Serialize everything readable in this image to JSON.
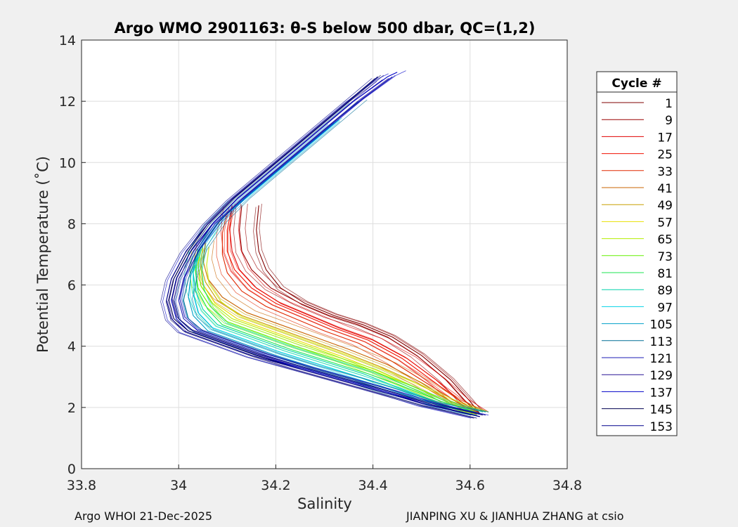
{
  "chart_data": {
    "type": "line",
    "title": "Argo WMO 2901163: θ-S below 500 dbar,  QC=(1,2)",
    "xlabel": "Salinity",
    "ylabel": "Potential Temperature (˚C)",
    "xlim": [
      33.8,
      34.8
    ],
    "ylim": [
      0,
      14
    ],
    "xticks": [
      "33.8",
      "34",
      "34.2",
      "34.4",
      "34.6",
      "34.8"
    ],
    "yticks": [
      "0",
      "2",
      "4",
      "6",
      "8",
      "10",
      "12",
      "14"
    ],
    "grid": true,
    "legend_title": "Cycle #",
    "legend_position": "right",
    "series": [
      {
        "name": "1",
        "color": "#800000",
        "x": [
          34.62,
          34.6,
          34.56,
          34.5,
          34.44,
          34.38,
          34.32,
          34.26,
          34.21,
          34.18,
          34.165,
          34.16,
          34.165
        ],
        "y": [
          1.8,
          2.2,
          2.9,
          3.7,
          4.3,
          4.7,
          5.0,
          5.4,
          5.9,
          6.5,
          7.1,
          7.8,
          8.6
        ]
      },
      {
        "name": "9",
        "color": "#9a0000",
        "x": [
          34.62,
          34.59,
          34.55,
          34.49,
          34.43,
          34.37,
          34.31,
          34.25,
          34.19,
          34.15,
          34.13,
          34.125,
          34.13
        ],
        "y": [
          1.8,
          2.2,
          2.9,
          3.7,
          4.3,
          4.7,
          5.0,
          5.4,
          5.9,
          6.5,
          7.1,
          7.8,
          8.6
        ]
      },
      {
        "name": "17",
        "color": "#e00000",
        "x": [
          34.62,
          34.58,
          34.53,
          34.47,
          34.4,
          34.33,
          34.27,
          34.21,
          34.16,
          34.125,
          34.11,
          34.105,
          34.11
        ],
        "y": [
          1.8,
          2.2,
          2.9,
          3.6,
          4.2,
          4.6,
          5.0,
          5.4,
          5.9,
          6.5,
          7.1,
          7.8,
          8.6
        ]
      },
      {
        "name": "25",
        "color": "#f01000",
        "x": [
          34.62,
          34.58,
          34.52,
          34.46,
          34.39,
          34.32,
          34.26,
          34.2,
          34.15,
          34.115,
          34.1,
          34.1,
          34.11
        ],
        "y": [
          1.8,
          2.2,
          2.9,
          3.6,
          4.2,
          4.6,
          5.0,
          5.4,
          5.9,
          6.5,
          7.1,
          7.8,
          8.6
        ]
      },
      {
        "name": "33",
        "color": "#e02800",
        "x": [
          34.62,
          34.57,
          34.51,
          34.44,
          34.37,
          34.3,
          34.24,
          34.18,
          34.13,
          34.1,
          34.09,
          34.09,
          34.1
        ],
        "y": [
          1.8,
          2.2,
          2.8,
          3.5,
          4.1,
          4.5,
          4.9,
          5.3,
          5.8,
          6.4,
          7.0,
          7.7,
          8.4
        ]
      },
      {
        "name": "41",
        "color": "#c86400",
        "x": [
          34.62,
          34.56,
          34.5,
          34.43,
          34.35,
          34.28,
          34.21,
          34.14,
          34.09,
          34.06,
          34.05,
          34.055
        ],
        "y": [
          1.8,
          2.2,
          2.8,
          3.4,
          3.9,
          4.3,
          4.7,
          5.1,
          5.6,
          6.2,
          6.8,
          7.4
        ]
      },
      {
        "name": "49",
        "color": "#c8a000",
        "x": [
          34.62,
          34.56,
          34.49,
          34.42,
          34.34,
          34.27,
          34.2,
          34.13,
          34.08,
          34.055,
          34.045,
          34.05
        ],
        "y": [
          1.8,
          2.2,
          2.8,
          3.3,
          3.8,
          4.2,
          4.6,
          5.0,
          5.5,
          6.1,
          6.7,
          7.3
        ]
      },
      {
        "name": "57",
        "color": "#e8e000",
        "x": [
          34.62,
          34.55,
          34.48,
          34.41,
          34.33,
          34.26,
          34.19,
          34.12,
          34.075,
          34.05,
          34.045,
          34.05
        ],
        "y": [
          1.8,
          2.2,
          2.7,
          3.2,
          3.7,
          4.1,
          4.5,
          4.9,
          5.4,
          6.0,
          6.6,
          7.2
        ]
      },
      {
        "name": "65",
        "color": "#b4ee00",
        "x": [
          34.62,
          34.55,
          34.48,
          34.4,
          34.32,
          34.25,
          34.18,
          34.11,
          34.07,
          34.045,
          34.04,
          34.045
        ],
        "y": [
          1.8,
          2.2,
          2.7,
          3.2,
          3.7,
          4.1,
          4.5,
          4.9,
          5.4,
          6.0,
          6.6,
          7.2
        ]
      },
      {
        "name": "73",
        "color": "#64f000",
        "x": [
          34.62,
          34.54,
          34.47,
          34.4,
          34.32,
          34.24,
          34.17,
          34.1,
          34.065,
          34.04,
          34.035,
          34.04
        ],
        "y": [
          1.8,
          2.2,
          2.7,
          3.2,
          3.6,
          4.0,
          4.4,
          4.8,
          5.3,
          5.9,
          6.5,
          7.1
        ]
      },
      {
        "name": "81",
        "color": "#1ee650",
        "x": [
          34.62,
          34.54,
          34.46,
          34.39,
          34.31,
          34.23,
          34.16,
          34.09,
          34.06,
          34.04,
          34.035,
          34.04
        ],
        "y": [
          1.8,
          2.2,
          2.7,
          3.1,
          3.5,
          3.9,
          4.3,
          4.7,
          5.2,
          5.8,
          6.4,
          7.0
        ]
      },
      {
        "name": "89",
        "color": "#00d2aa",
        "x": [
          34.62,
          34.54,
          34.46,
          34.38,
          34.3,
          34.22,
          34.15,
          34.08,
          34.05,
          34.035,
          34.03,
          34.04,
          34.07,
          34.12
        ],
        "y": [
          1.8,
          2.1,
          2.6,
          3.1,
          3.5,
          3.9,
          4.3,
          4.7,
          5.2,
          5.8,
          6.4,
          7.2,
          8.0,
          8.8
        ]
      },
      {
        "name": "97",
        "color": "#00d2e6",
        "x": [
          34.62,
          34.53,
          34.45,
          34.37,
          34.29,
          34.21,
          34.14,
          34.07,
          34.04,
          34.03,
          34.03,
          34.05,
          34.09,
          34.15,
          34.21,
          34.27,
          34.33
        ],
        "y": [
          1.8,
          2.1,
          2.6,
          3.0,
          3.4,
          3.8,
          4.2,
          4.6,
          5.1,
          5.7,
          6.4,
          7.3,
          8.2,
          9.0,
          9.8,
          10.6,
          11.4
        ]
      },
      {
        "name": "105",
        "color": "#00a0c8",
        "x": [
          34.62,
          34.53,
          34.45,
          34.37,
          34.28,
          34.2,
          34.13,
          34.06,
          34.03,
          34.02,
          34.025,
          34.045,
          34.085,
          34.14,
          34.2,
          34.26,
          34.32
        ],
        "y": [
          1.8,
          2.1,
          2.5,
          2.9,
          3.3,
          3.7,
          4.1,
          4.5,
          5.0,
          5.6,
          6.3,
          7.2,
          8.1,
          8.9,
          9.7,
          10.5,
          11.3
        ]
      },
      {
        "name": "113",
        "color": "#006e96",
        "x": [
          34.62,
          34.52,
          34.44,
          34.36,
          34.27,
          34.19,
          34.12,
          34.05,
          34.02,
          34.01,
          34.02,
          34.04,
          34.08,
          34.13,
          34.19,
          34.25,
          34.31,
          34.37
        ],
        "y": [
          1.8,
          2.1,
          2.5,
          2.9,
          3.3,
          3.7,
          4.1,
          4.5,
          4.9,
          5.5,
          6.2,
          7.1,
          8.0,
          8.8,
          9.6,
          10.4,
          11.2,
          12.0
        ]
      },
      {
        "name": "121",
        "color": "#1e1eb4",
        "x": [
          34.62,
          34.52,
          34.44,
          34.35,
          34.26,
          34.18,
          34.11,
          34.04,
          34.01,
          34.0,
          34.01,
          34.035,
          34.075,
          34.13,
          34.19,
          34.25,
          34.31,
          34.38,
          34.44
        ],
        "y": [
          1.7,
          2.1,
          2.5,
          2.9,
          3.3,
          3.7,
          4.1,
          4.5,
          4.9,
          5.5,
          6.2,
          7.1,
          8.0,
          8.8,
          9.6,
          10.4,
          11.2,
          12.1,
          12.8
        ]
      },
      {
        "name": "129",
        "color": "#281496",
        "x": [
          34.62,
          34.52,
          34.43,
          34.34,
          34.25,
          34.17,
          34.1,
          34.03,
          34.0,
          33.99,
          34.0,
          34.03,
          34.07,
          34.12,
          34.18,
          34.24,
          34.3,
          34.36,
          34.42
        ],
        "y": [
          1.7,
          2.1,
          2.5,
          2.9,
          3.3,
          3.7,
          4.1,
          4.5,
          4.9,
          5.5,
          6.2,
          7.1,
          8.0,
          8.8,
          9.6,
          10.4,
          11.2,
          12.0,
          12.7
        ]
      },
      {
        "name": "137",
        "color": "#0000c8",
        "x": [
          34.62,
          34.51,
          34.43,
          34.34,
          34.25,
          34.16,
          34.09,
          34.02,
          33.995,
          33.985,
          33.995,
          34.025,
          34.07,
          34.12,
          34.18,
          34.24,
          34.3,
          34.36,
          34.43,
          34.45
        ],
        "y": [
          1.7,
          2.1,
          2.5,
          2.9,
          3.3,
          3.7,
          4.1,
          4.5,
          4.9,
          5.5,
          6.2,
          7.1,
          8.0,
          8.8,
          9.6,
          10.4,
          11.2,
          12.0,
          12.8,
          12.95
        ]
      },
      {
        "name": "145",
        "color": "#000050",
        "x": [
          34.62,
          34.51,
          34.42,
          34.33,
          34.24,
          34.16,
          34.09,
          34.02,
          33.99,
          33.98,
          33.99,
          34.02,
          34.06,
          34.11,
          34.17,
          34.23,
          34.29,
          34.35,
          34.41
        ],
        "y": [
          1.7,
          2.1,
          2.5,
          2.9,
          3.3,
          3.7,
          4.1,
          4.5,
          4.9,
          5.5,
          6.2,
          7.1,
          8.0,
          8.8,
          9.6,
          10.4,
          11.2,
          12.0,
          12.8
        ]
      },
      {
        "name": "153",
        "color": "#00008c",
        "x": [
          34.62,
          34.51,
          34.42,
          34.33,
          34.24,
          34.15,
          34.08,
          34.01,
          33.985,
          33.975,
          33.985,
          34.015,
          34.06,
          34.11,
          34.17,
          34.23,
          34.29,
          34.35,
          34.41
        ],
        "y": [
          1.7,
          2.1,
          2.5,
          2.9,
          3.3,
          3.7,
          4.1,
          4.5,
          4.9,
          5.5,
          6.2,
          7.1,
          8.0,
          8.8,
          9.6,
          10.4,
          11.2,
          12.0,
          12.8
        ]
      }
    ]
  },
  "footer": {
    "left": "Argo WHOI 21-Dec-2025",
    "right": "JIANPING XU & JIANHUA ZHANG at csio"
  }
}
